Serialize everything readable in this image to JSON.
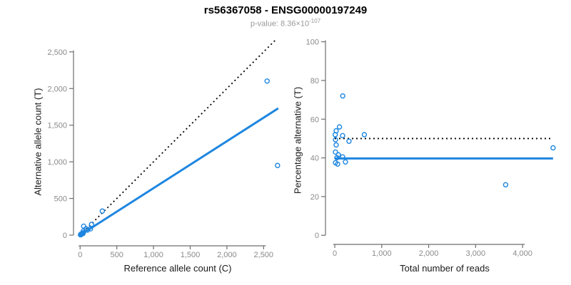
{
  "page": {
    "title": "rs56367058 - ENSG00000197249",
    "p_label": "p-value: 8.36×10",
    "p_exponent": "-107"
  },
  "colors": {
    "point": "#1E86E0",
    "trend": "#1E86E0",
    "reference": "#000000",
    "axis": "#6e6e6e",
    "tick_label": "#8a8a8a",
    "axis_title": "#1a1a1a",
    "subtitle": "#999999"
  },
  "chart_data": [
    {
      "name": "allele-count-scatter",
      "type": "scatter",
      "title": "",
      "xlabel": "Reference allele count (C)",
      "ylabel": "Alternative allele count (T)",
      "xlim": [
        -90,
        2750
      ],
      "ylim": [
        -146,
        2683
      ],
      "grid": false,
      "xticks": [
        {
          "v": 0,
          "label": "0"
        },
        {
          "v": 500,
          "label": "500"
        },
        {
          "v": 1000,
          "label": "1,000"
        },
        {
          "v": 1500,
          "label": "1,500"
        },
        {
          "v": 2000,
          "label": "2,000"
        },
        {
          "v": 2500,
          "label": "2,500"
        }
      ],
      "yticks": [
        {
          "v": 0,
          "label": "0"
        },
        {
          "v": 500,
          "label": "500"
        },
        {
          "v": 1000,
          "label": "1,000"
        },
        {
          "v": 1500,
          "label": "1,500"
        },
        {
          "v": 2000,
          "label": "2,000"
        },
        {
          "v": 2500,
          "label": "2,500"
        }
      ],
      "points": [
        [
          5,
          5
        ],
        [
          8,
          7
        ],
        [
          9,
          6
        ],
        [
          10,
          6
        ],
        [
          14,
          16
        ],
        [
          16,
          14
        ],
        [
          27,
          18
        ],
        [
          39,
          22
        ],
        [
          44,
          32
        ],
        [
          44,
          56
        ],
        [
          48,
          122
        ],
        [
          81,
          86
        ],
        [
          99,
          68
        ],
        [
          141,
          86
        ],
        [
          156,
          147
        ],
        [
          302,
          328
        ],
        [
          2690,
          950
        ],
        [
          2548,
          2102
        ]
      ],
      "lines": [
        {
          "name": "identity-line",
          "style": "dotted",
          "color": "reference",
          "x1": 0,
          "y1": 0,
          "x2": 2680,
          "y2": 2680
        },
        {
          "name": "regression-line",
          "style": "solid",
          "color": "trend",
          "x1": 0,
          "y1": 0,
          "x2": 2700,
          "y2": 1730
        }
      ]
    },
    {
      "name": "percentage-scatter",
      "type": "scatter",
      "title": "",
      "xlabel": "Total number of reads",
      "ylabel": "Percentage alternative (T)",
      "xlim": [
        -198,
        4880
      ],
      "ylim": [
        -4.7,
        101.7
      ],
      "grid": false,
      "xticks": [
        {
          "v": 0,
          "label": "0"
        },
        {
          "v": 1000,
          "label": "1,000"
        },
        {
          "v": 2000,
          "label": "2,000"
        },
        {
          "v": 3000,
          "label": "3,000"
        },
        {
          "v": 4000,
          "label": "4,000"
        }
      ],
      "yticks": [
        {
          "v": 0,
          "label": "0"
        },
        {
          "v": 20,
          "label": "20"
        },
        {
          "v": 40,
          "label": "40"
        },
        {
          "v": 60,
          "label": "60"
        },
        {
          "v": 80,
          "label": "80"
        },
        {
          "v": 100,
          "label": "100"
        }
      ],
      "points": [
        [
          10,
          52
        ],
        [
          15,
          49.4
        ],
        [
          15,
          43
        ],
        [
          16,
          37.5
        ],
        [
          30,
          54
        ],
        [
          30,
          46.7
        ],
        [
          45,
          40.1
        ],
        [
          61,
          36.8
        ],
        [
          76,
          41.6
        ],
        [
          100,
          56
        ],
        [
          167,
          51.5
        ],
        [
          170,
          72
        ],
        [
          167,
          40.5
        ],
        [
          227,
          37.9
        ],
        [
          303,
          48.6
        ],
        [
          630,
          52
        ],
        [
          3640,
          26.1
        ],
        [
          4650,
          45.2
        ]
      ],
      "lines": [
        {
          "name": "fifty-percent-line",
          "style": "dotted",
          "color": "reference",
          "x1": 0,
          "y1": 50,
          "x2": 4600,
          "y2": 50
        },
        {
          "name": "mean-percentage-line",
          "style": "solid",
          "color": "trend",
          "x1": 0,
          "y1": 39.7,
          "x2": 4650,
          "y2": 39.7
        }
      ]
    }
  ]
}
